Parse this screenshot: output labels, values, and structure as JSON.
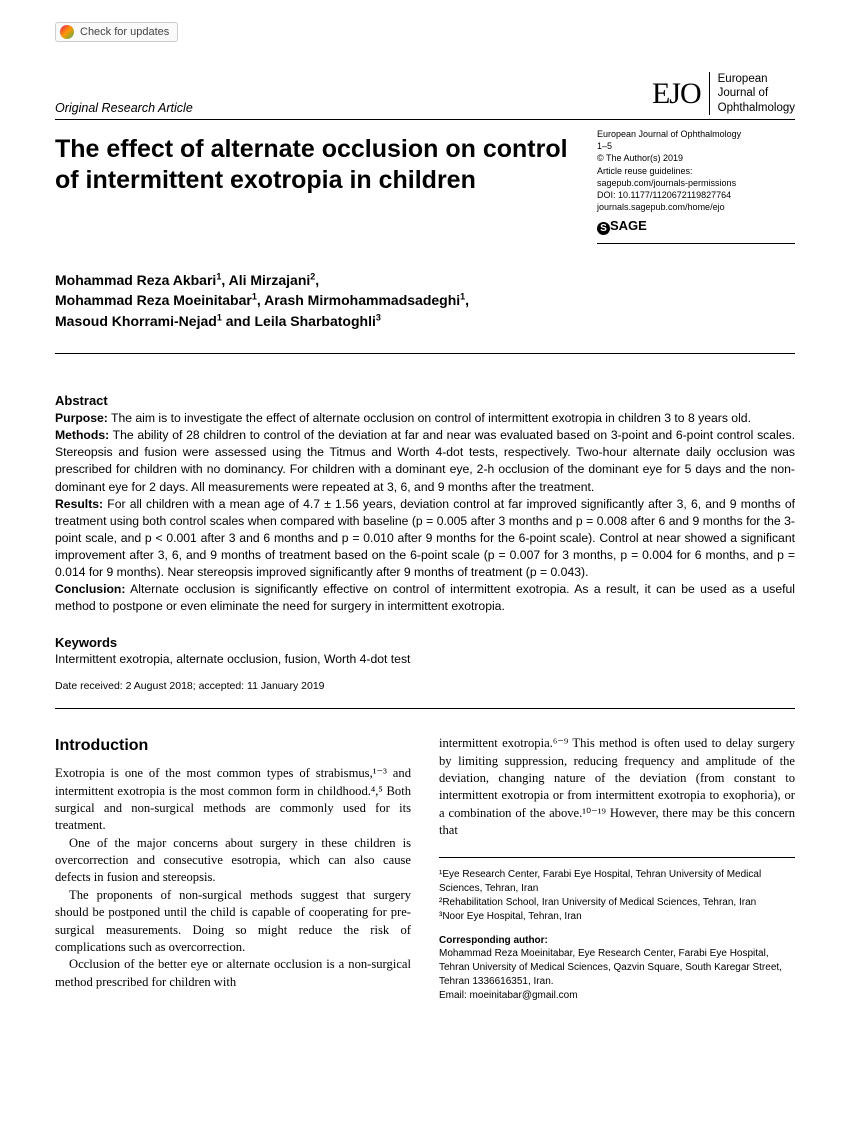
{
  "check_updates_label": "Check for updates",
  "article_type": "Original Research Article",
  "journal": {
    "logo": "EJO",
    "name_line1": "European",
    "name_line2": "Journal of",
    "name_line3": "Ophthalmology"
  },
  "meta": {
    "line1": "European Journal of Ophthalmology",
    "line2": "1–5",
    "line3": "© The Author(s) 2019",
    "line4": "Article reuse guidelines:",
    "line5": "sagepub.com/journals-permissions",
    "line6": "DOI: 10.1177/1120672119827764",
    "line7": "journals.sagepub.com/home/ejo",
    "sage": "SAGE"
  },
  "title": "The effect of alternate occlusion on control of intermittent exotropia in children",
  "authors_html": "Mohammad Reza Akbari¹, Ali Mirzajani², Mohammad Reza Moeinitabar¹, Arash Mirmohammadsadeghi¹, Masoud Khorrami-Nejad¹ and Leila Sharbatoghli³",
  "abstract": {
    "heading": "Abstract",
    "purpose_label": "Purpose:",
    "purpose": " The aim is to investigate the effect of alternate occlusion on control of intermittent exotropia in children 3 to 8 years old.",
    "methods_label": "Methods:",
    "methods": " The ability of 28 children to control of the deviation at far and near was evaluated based on 3-point and 6-point control scales. Stereopsis and fusion were assessed using the Titmus and Worth 4-dot tests, respectively. Two-hour alternate daily occlusion was prescribed for children with no dominancy. For children with a dominant eye, 2-h occlusion of the dominant eye for 5 days and the non-dominant eye for 2 days. All measurements were repeated at 3, 6, and 9 months after the treatment.",
    "results_label": "Results:",
    "results": " For all children with a mean age of 4.7 ± 1.56 years, deviation control at far improved significantly after 3, 6, and 9 months of treatment using both control scales when compared with baseline (p = 0.005 after 3 months and p = 0.008 after 6 and 9 months for the 3-point scale, and p < 0.001 after 3 and 6 months and p = 0.010 after 9 months for the 6-point scale). Control at near showed a significant improvement after 3, 6, and 9 months of treatment based on the 6-point scale (p = 0.007 for 3 months, p = 0.004 for 6 months, and p = 0.014 for 9 months). Near stereopsis improved significantly after 9 months of treatment (p = 0.043).",
    "conclusion_label": "Conclusion:",
    "conclusion": " Alternate occlusion is significantly effective on control of intermittent exotropia. As a result, it can be used as a useful method to postpone or even eliminate the need for surgery in intermittent exotropia."
  },
  "keywords": {
    "heading": "Keywords",
    "text": "Intermittent exotropia, alternate occlusion, fusion, Worth 4-dot test"
  },
  "dates": "Date received: 2 August 2018; accepted: 11 January 2019",
  "intro": {
    "heading": "Introduction",
    "p1": "Exotropia is one of the most common types of strabismus,¹⁻³ and intermittent exotropia is the most common form in childhood.⁴,⁵ Both surgical and non-surgical methods are commonly used for its treatment.",
    "p2": "One of the major concerns about surgery in these children is overcorrection and consecutive esotropia, which can also cause defects in fusion and stereopsis.",
    "p3": "The proponents of non-surgical methods suggest that surgery should be postponed until the child is capable of cooperating for pre-surgical measurements. Doing so might reduce the risk of complications such as overcorrection.",
    "p4": "Occlusion of the better eye or alternate occlusion is a non-surgical method prescribed for children with",
    "p5": "intermittent exotropia.⁶⁻⁹ This method is often used to delay surgery by limiting suppression, reducing frequency and amplitude of the deviation, changing nature of the deviation (from constant to intermittent exotropia or from intermittent exotropia to exophoria), or a combination of the above.¹⁰⁻¹⁹ However, there may be this concern that"
  },
  "affiliations": {
    "a1": "¹Eye Research Center, Farabi Eye Hospital, Tehran University of Medical Sciences, Tehran, Iran",
    "a2": "²Rehabilitation School, Iran University of Medical Sciences, Tehran, Iran",
    "a3": "³Noor Eye Hospital, Tehran, Iran",
    "corr_heading": "Corresponding author:",
    "corr_text": "Mohammad Reza Moeinitabar, Eye Research Center, Farabi Eye Hospital, Tehran University of Medical Sciences, Qazvin Square, South Karegar Street, Tehran 1336616351, Iran.",
    "corr_email": "Email: moeinitabar@gmail.com"
  }
}
